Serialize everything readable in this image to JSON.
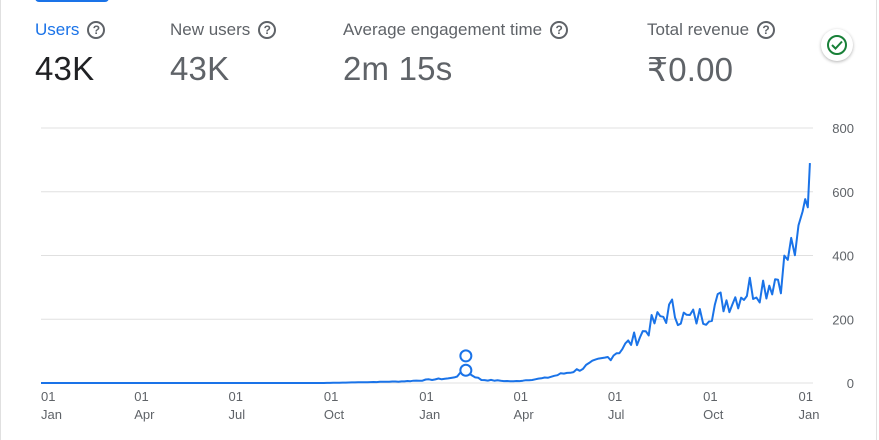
{
  "metrics": [
    {
      "label": "Users",
      "value": "43K",
      "active": true
    },
    {
      "label": "New users",
      "value": "43K",
      "active": false
    },
    {
      "label": "Average engagement time",
      "value": "2m 15s",
      "active": false
    },
    {
      "label": "Total revenue",
      "value": "₹0.00",
      "active": false
    }
  ],
  "help_glyph": "?",
  "colors": {
    "accent": "#1a73e8",
    "success": "#188038",
    "grid": "#e0e0e0",
    "muted_text": "#5f6368"
  },
  "status_icon": "check-circle-icon",
  "chart_data": {
    "type": "line",
    "title": "",
    "xlabel": "",
    "ylabel": "",
    "ylim": [
      0,
      800
    ],
    "y_ticks": [
      0,
      200,
      400,
      600,
      800
    ],
    "y_axis_side": "right",
    "grid": true,
    "x_tick_labels": [
      [
        "01",
        "Jan"
      ],
      [
        "01",
        "Apr"
      ],
      [
        "01",
        "Jul"
      ],
      [
        "01",
        "Oct"
      ],
      [
        "01",
        "Jan"
      ],
      [
        "01",
        "Apr"
      ],
      [
        "01",
        "Jul"
      ],
      [
        "01",
        "Oct"
      ],
      [
        "01",
        "Jan"
      ]
    ],
    "series": [
      {
        "color": "#1a73e8",
        "x": [
          "2023-01-01",
          "2023-04-01",
          "2023-07-01",
          "2023-10-01",
          "2023-12-15",
          "2024-01-01",
          "2024-02-01",
          "2024-02-15",
          "2024-03-01",
          "2024-04-01",
          "2024-05-01",
          "2024-06-01",
          "2024-07-01",
          "2024-07-15",
          "2024-08-01",
          "2024-08-15",
          "2024-09-01",
          "2024-09-15",
          "2024-10-01",
          "2024-10-15",
          "2024-11-01",
          "2024-11-15",
          "2024-12-01",
          "2024-12-15",
          "2024-12-25",
          "2025-01-01",
          "2025-01-05",
          "2025-01-10",
          "2025-01-12"
        ],
        "y": [
          0,
          0,
          0,
          0,
          5,
          8,
          15,
          35,
          10,
          5,
          15,
          40,
          80,
          110,
          150,
          190,
          230,
          200,
          210,
          250,
          270,
          300,
          310,
          340,
          420,
          430,
          500,
          600,
          690
        ]
      }
    ],
    "annotations": [
      {
        "type": "marker",
        "x": "2024-02-15",
        "y": 40
      },
      {
        "type": "marker",
        "x": "2024-02-15",
        "y": 85
      }
    ]
  }
}
